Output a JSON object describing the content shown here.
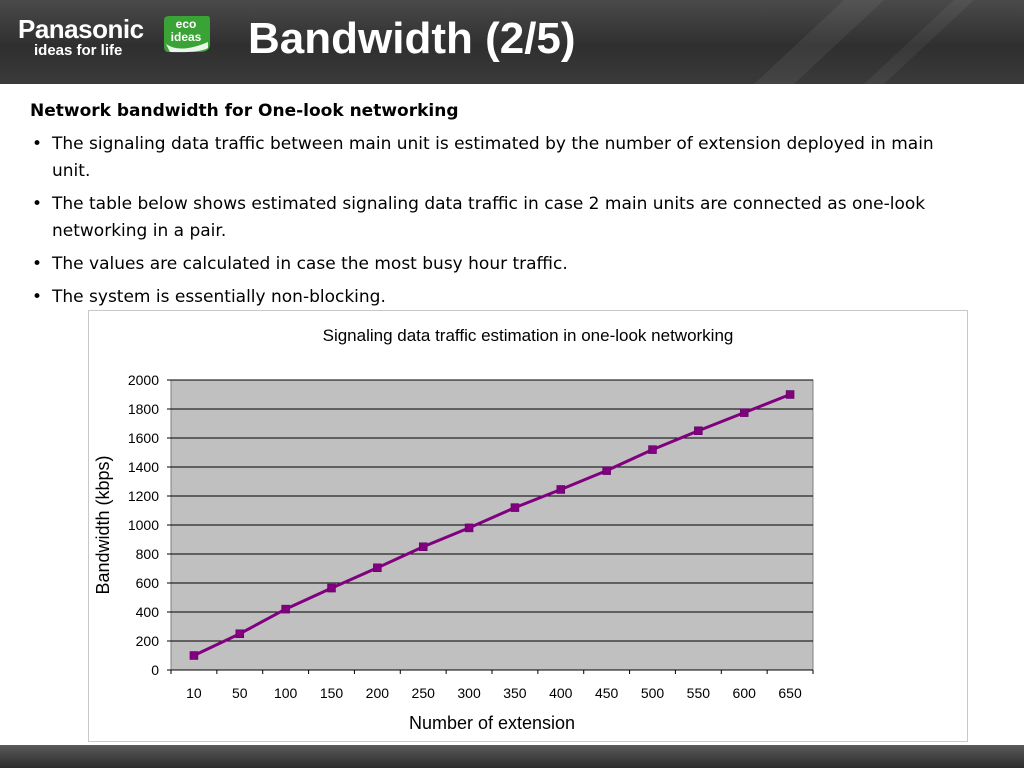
{
  "header": {
    "brand": "Panasonic",
    "tagline": "ideas for life",
    "eco_badge": [
      "eco",
      "ideas"
    ],
    "title": "Bandwidth (2/5)"
  },
  "content": {
    "heading": "Network bandwidth for One-look networking",
    "bullets": [
      "The signaling data traffic between main unit is estimated by the number of extension deployed in main unit.",
      "The table below shows estimated signaling data traffic in case 2 main units are connected as one-look networking in a pair.",
      "The values are calculated in case the most busy hour traffic.",
      "The system is essentially non-blocking."
    ]
  },
  "colors": {
    "header_bg": "#333333",
    "plot_bg": "#c0c0c0",
    "series": "#800080",
    "eco_green": "#3aa335"
  },
  "chart_data": {
    "type": "line",
    "title": "Signaling data traffic estimation in one-look networking",
    "xlabel": "Number of extension",
    "ylabel": "Bandwidth (kbps)",
    "categories": [
      "10",
      "50",
      "100",
      "150",
      "200",
      "250",
      "300",
      "350",
      "400",
      "450",
      "500",
      "550",
      "600",
      "650"
    ],
    "values": [
      100,
      250,
      420,
      565,
      705,
      850,
      980,
      1120,
      1245,
      1375,
      1520,
      1650,
      1775,
      1900
    ],
    "ylim": [
      0,
      2000
    ],
    "yticks": [
      "0",
      "200",
      "400",
      "600",
      "800",
      "1000",
      "1200",
      "1400",
      "1600",
      "1800",
      "2000"
    ],
    "grid": true,
    "legend": "none",
    "marker": "square"
  }
}
